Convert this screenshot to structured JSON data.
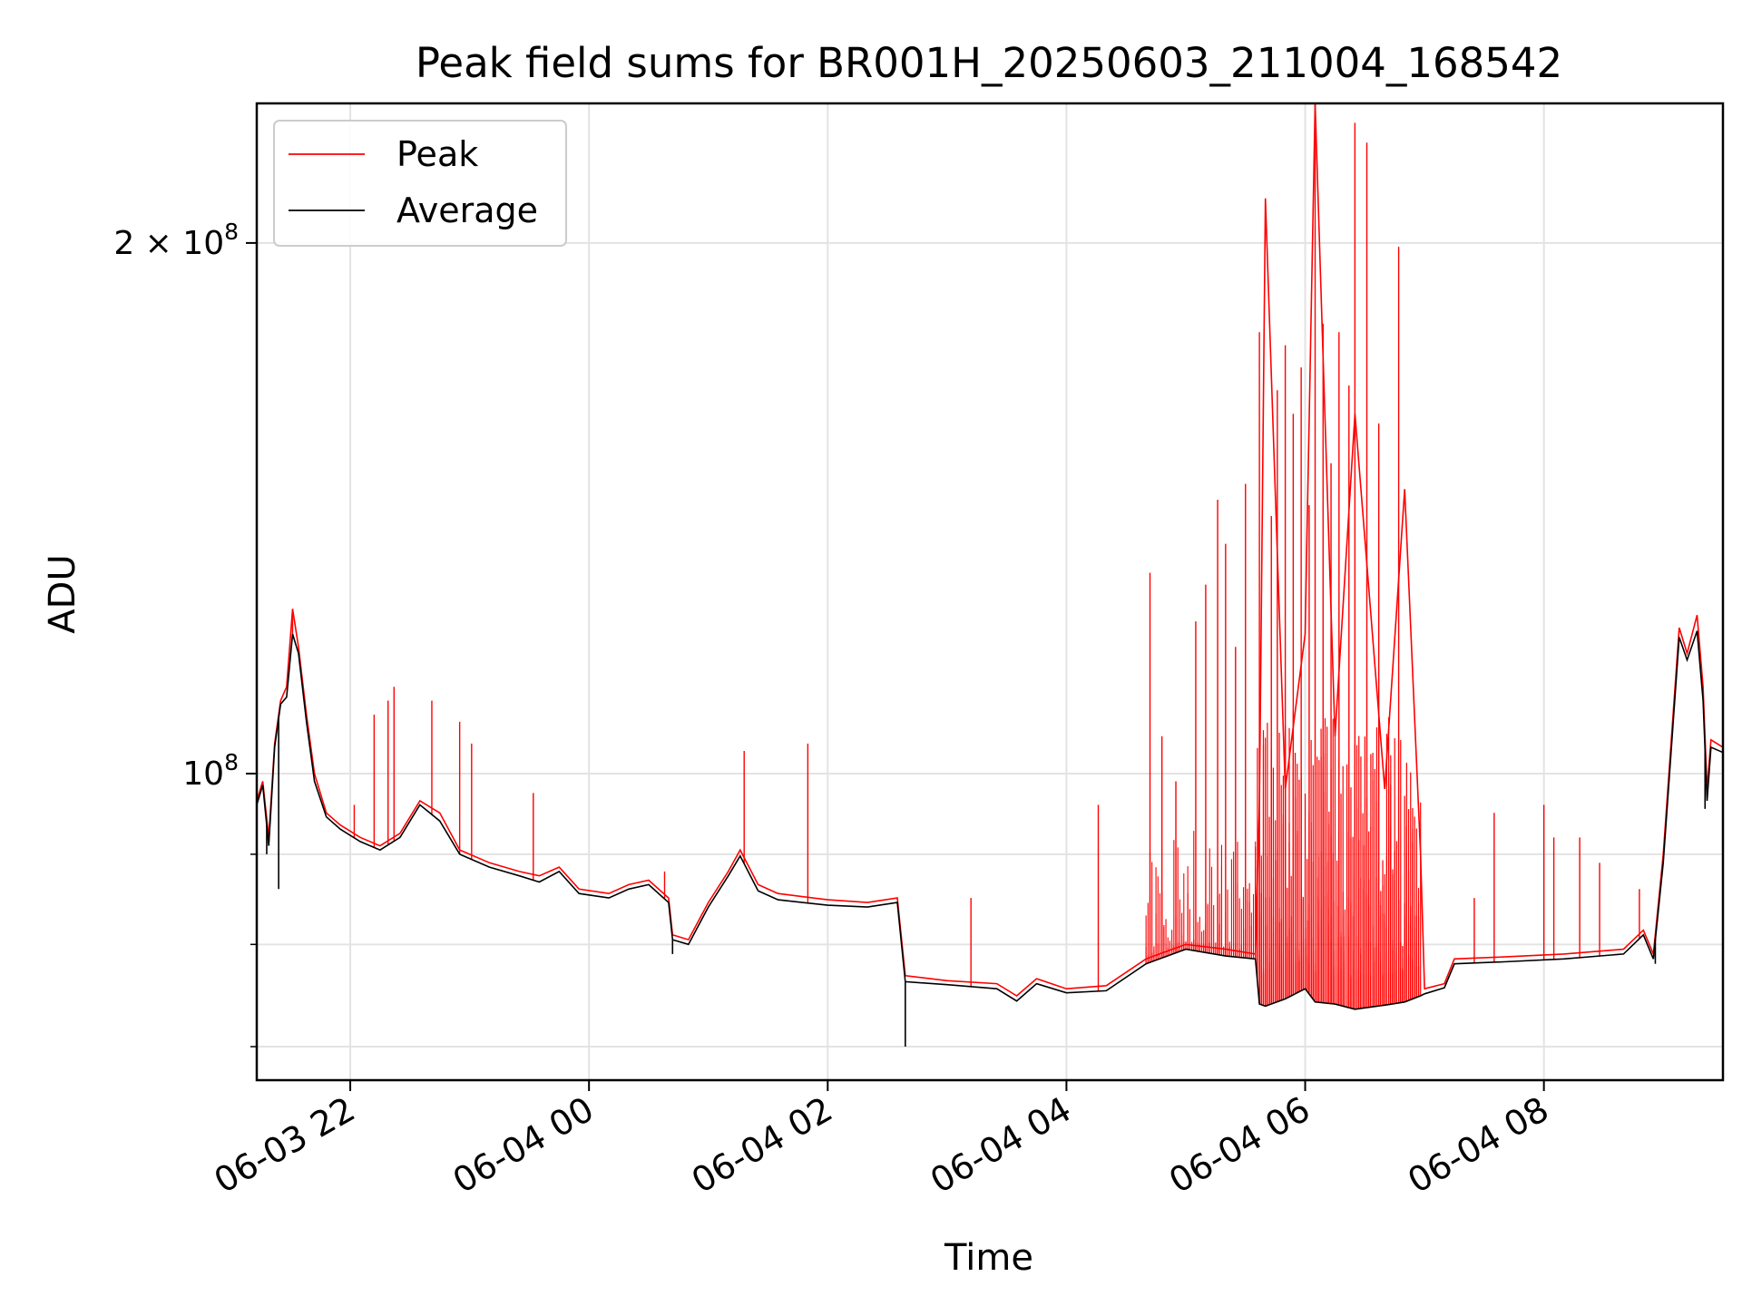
{
  "chart_data": {
    "type": "line",
    "title": "Peak field sums for BR001H_20250603_211004_168542",
    "xlabel": "Time",
    "ylabel": "ADU",
    "y_scale": "log",
    "ylim": [
      67000000,
      240000000
    ],
    "xlim": [
      "2025-06-03 21:13",
      "2025-06-04 09:30"
    ],
    "x_ticks": [
      {
        "label": "06-03 22",
        "value": "2025-06-03 22:00"
      },
      {
        "label": "06-04 00",
        "value": "2025-06-04 00:00"
      },
      {
        "label": "06-04 02",
        "value": "2025-06-04 02:00"
      },
      {
        "label": "06-04 04",
        "value": "2025-06-04 04:00"
      },
      {
        "label": "06-04 06",
        "value": "2025-06-04 06:00"
      },
      {
        "label": "06-04 08",
        "value": "2025-06-04 08:00"
      }
    ],
    "y_ticks": [
      {
        "label": "10",
        "sup": "8",
        "value": 100000000
      },
      {
        "label": "2 × 10",
        "sup": "8",
        "value": 200000000
      }
    ],
    "y_minor_ticks": [
      70000000,
      80000000,
      90000000
    ],
    "grid": true,
    "legend_position": "top-left",
    "series": [
      {
        "name": "Peak",
        "color": "#ff0000",
        "points": [
          [
            "2025-06-03 21:13",
            96500000
          ],
          [
            "2025-06-03 21:16",
            99000000
          ],
          [
            "2025-06-03 21:19",
            92000000
          ],
          [
            "2025-06-03 21:22",
            104000000
          ],
          [
            "2025-06-03 21:25",
            110000000
          ],
          [
            "2025-06-03 21:28",
            112000000
          ],
          [
            "2025-06-03 21:31",
            124000000
          ],
          [
            "2025-06-03 21:34",
            118000000
          ],
          [
            "2025-06-03 21:38",
            108000000
          ],
          [
            "2025-06-03 21:42",
            100000000
          ],
          [
            "2025-06-03 21:48",
            95000000
          ],
          [
            "2025-06-03 21:55",
            93500000
          ],
          [
            "2025-06-03 22:05",
            92000000
          ],
          [
            "2025-06-03 22:15",
            91000000
          ],
          [
            "2025-06-03 22:25",
            92500000
          ],
          [
            "2025-06-03 22:35",
            96500000
          ],
          [
            "2025-06-03 22:45",
            95000000
          ],
          [
            "2025-06-03 22:55",
            90500000
          ],
          [
            "2025-06-03 23:10",
            89000000
          ],
          [
            "2025-06-03 23:25",
            88000000
          ],
          [
            "2025-06-03 23:35",
            87500000
          ],
          [
            "2025-06-03 23:45",
            88500000
          ],
          [
            "2025-06-03 23:55",
            86000000
          ],
          [
            "2025-06-04 00:10",
            85500000
          ],
          [
            "2025-06-04 00:20",
            86500000
          ],
          [
            "2025-06-04 00:30",
            87000000
          ],
          [
            "2025-06-04 00:40",
            85000000
          ],
          [
            "2025-06-04 00:42",
            81000000
          ],
          [
            "2025-06-04 00:50",
            80500000
          ],
          [
            "2025-06-04 01:00",
            84500000
          ],
          [
            "2025-06-04 01:10",
            88000000
          ],
          [
            "2025-06-04 01:16",
            90500000
          ],
          [
            "2025-06-04 01:25",
            86500000
          ],
          [
            "2025-06-04 01:35",
            85500000
          ],
          [
            "2025-06-04 02:00",
            84800000
          ],
          [
            "2025-06-04 02:20",
            84500000
          ],
          [
            "2025-06-04 02:35",
            85000000
          ],
          [
            "2025-06-04 02:39",
            76800000
          ],
          [
            "2025-06-04 03:00",
            76300000
          ],
          [
            "2025-06-04 03:25",
            76000000
          ],
          [
            "2025-06-04 03:35",
            74800000
          ],
          [
            "2025-06-04 03:45",
            76500000
          ],
          [
            "2025-06-04 04:00",
            75500000
          ],
          [
            "2025-06-04 04:20",
            75800000
          ],
          [
            "2025-06-04 04:40",
            78500000
          ],
          [
            "2025-06-04 05:00",
            80000000
          ],
          [
            "2025-06-04 05:20",
            79500000
          ],
          [
            "2025-06-04 05:35",
            79000000
          ],
          [
            "2025-06-04 05:37",
            96000000
          ],
          [
            "2025-06-04 05:40",
            212000000
          ],
          [
            "2025-06-04 05:50",
            98000000
          ],
          [
            "2025-06-04 06:00",
            120000000
          ],
          [
            "2025-06-04 06:05",
            240000000
          ],
          [
            "2025-06-04 06:15",
            105000000
          ],
          [
            "2025-06-04 06:25",
            160000000
          ],
          [
            "2025-06-04 06:40",
            98000000
          ],
          [
            "2025-06-04 06:50",
            145000000
          ],
          [
            "2025-06-04 06:58",
            90000000
          ],
          [
            "2025-06-04 07:00",
            75500000
          ],
          [
            "2025-06-04 07:10",
            76000000
          ],
          [
            "2025-06-04 07:15",
            78500000
          ],
          [
            "2025-06-04 07:40",
            78700000
          ],
          [
            "2025-06-04 08:10",
            79000000
          ],
          [
            "2025-06-04 08:40",
            79500000
          ],
          [
            "2025-06-04 08:50",
            81500000
          ],
          [
            "2025-06-04 08:55",
            79000000
          ],
          [
            "2025-06-04 09:00",
            90000000
          ],
          [
            "2025-06-04 09:08",
            121000000
          ],
          [
            "2025-06-04 09:12",
            117000000
          ],
          [
            "2025-06-04 09:17",
            123000000
          ],
          [
            "2025-06-04 09:20",
            112000000
          ],
          [
            "2025-06-04 09:22",
            98000000
          ],
          [
            "2025-06-04 09:24",
            104500000
          ],
          [
            "2025-06-04 09:30",
            103500000
          ]
        ]
      },
      {
        "name": "Average",
        "color": "#000000",
        "points": [
          [
            "2025-06-03 21:13",
            96000000
          ],
          [
            "2025-06-03 21:16",
            98500000
          ],
          [
            "2025-06-03 21:19",
            91000000
          ],
          [
            "2025-06-03 21:22",
            103500000
          ],
          [
            "2025-06-03 21:25",
            109500000
          ],
          [
            "2025-06-03 21:28",
            110500000
          ],
          [
            "2025-06-03 21:31",
            120000000
          ],
          [
            "2025-06-03 21:34",
            117000000
          ],
          [
            "2025-06-03 21:38",
            107000000
          ],
          [
            "2025-06-03 21:42",
            99000000
          ],
          [
            "2025-06-03 21:48",
            94500000
          ],
          [
            "2025-06-03 21:55",
            93000000
          ],
          [
            "2025-06-03 22:05",
            91500000
          ],
          [
            "2025-06-03 22:15",
            90500000
          ],
          [
            "2025-06-03 22:25",
            92000000
          ],
          [
            "2025-06-03 22:35",
            96000000
          ],
          [
            "2025-06-03 22:45",
            94000000
          ],
          [
            "2025-06-03 22:55",
            90000000
          ],
          [
            "2025-06-03 23:10",
            88500000
          ],
          [
            "2025-06-03 23:25",
            87500000
          ],
          [
            "2025-06-03 23:35",
            86800000
          ],
          [
            "2025-06-03 23:45",
            88000000
          ],
          [
            "2025-06-03 23:55",
            85500000
          ],
          [
            "2025-06-04 00:10",
            85000000
          ],
          [
            "2025-06-04 00:20",
            86000000
          ],
          [
            "2025-06-04 00:30",
            86500000
          ],
          [
            "2025-06-04 00:40",
            84500000
          ],
          [
            "2025-06-04 00:42",
            80500000
          ],
          [
            "2025-06-04 00:50",
            80000000
          ],
          [
            "2025-06-04 01:00",
            84000000
          ],
          [
            "2025-06-04 01:10",
            87500000
          ],
          [
            "2025-06-04 01:16",
            89800000
          ],
          [
            "2025-06-04 01:25",
            85800000
          ],
          [
            "2025-06-04 01:35",
            84800000
          ],
          [
            "2025-06-04 02:00",
            84200000
          ],
          [
            "2025-06-04 02:20",
            84000000
          ],
          [
            "2025-06-04 02:35",
            84500000
          ],
          [
            "2025-06-04 02:39",
            76200000
          ],
          [
            "2025-06-04 03:00",
            75900000
          ],
          [
            "2025-06-04 03:25",
            75500000
          ],
          [
            "2025-06-04 03:35",
            74300000
          ],
          [
            "2025-06-04 03:45",
            76000000
          ],
          [
            "2025-06-04 04:00",
            75100000
          ],
          [
            "2025-06-04 04:20",
            75300000
          ],
          [
            "2025-06-04 04:40",
            78000000
          ],
          [
            "2025-06-04 05:00",
            79500000
          ],
          [
            "2025-06-04 05:20",
            78800000
          ],
          [
            "2025-06-04 05:35",
            78500000
          ],
          [
            "2025-06-04 05:37",
            74000000
          ],
          [
            "2025-06-04 05:40",
            73800000
          ],
          [
            "2025-06-04 05:50",
            74500000
          ],
          [
            "2025-06-04 06:00",
            75500000
          ],
          [
            "2025-06-04 06:05",
            74200000
          ],
          [
            "2025-06-04 06:15",
            74000000
          ],
          [
            "2025-06-04 06:25",
            73500000
          ],
          [
            "2025-06-04 06:40",
            73900000
          ],
          [
            "2025-06-04 06:50",
            74200000
          ],
          [
            "2025-06-04 06:58",
            74800000
          ],
          [
            "2025-06-04 07:00",
            75000000
          ],
          [
            "2025-06-04 07:10",
            75600000
          ],
          [
            "2025-06-04 07:15",
            78000000
          ],
          [
            "2025-06-04 07:40",
            78200000
          ],
          [
            "2025-06-04 08:10",
            78500000
          ],
          [
            "2025-06-04 08:40",
            79000000
          ],
          [
            "2025-06-04 08:50",
            81000000
          ],
          [
            "2025-06-04 08:55",
            78500000
          ],
          [
            "2025-06-04 09:00",
            89000000
          ],
          [
            "2025-06-04 09:08",
            119500000
          ],
          [
            "2025-06-04 09:12",
            116000000
          ],
          [
            "2025-06-04 09:17",
            120500000
          ],
          [
            "2025-06-04 09:20",
            110000000
          ],
          [
            "2025-06-04 09:22",
            96500000
          ],
          [
            "2025-06-04 09:24",
            103500000
          ],
          [
            "2025-06-04 09:30",
            102800000
          ]
        ]
      }
    ],
    "spikes_peak": [
      [
        "2025-06-03 21:31",
        124000000
      ],
      [
        "2025-06-03 22:02",
        96000000
      ],
      [
        "2025-06-03 22:12",
        108000000
      ],
      [
        "2025-06-03 22:19",
        110000000
      ],
      [
        "2025-06-03 22:22",
        112000000
      ],
      [
        "2025-06-03 22:41",
        110000000
      ],
      [
        "2025-06-03 22:55",
        107000000
      ],
      [
        "2025-06-03 23:01",
        104000000
      ],
      [
        "2025-06-03 23:32",
        97500000
      ],
      [
        "2025-06-04 00:38",
        88000000
      ],
      [
        "2025-06-04 01:18",
        103000000
      ],
      [
        "2025-06-04 01:50",
        104000000
      ],
      [
        "2025-06-04 03:12",
        85000000
      ],
      [
        "2025-06-04 04:16",
        96000000
      ],
      [
        "2025-06-04 04:42",
        130000000
      ],
      [
        "2025-06-04 04:48",
        105000000
      ],
      [
        "2025-06-04 04:55",
        99000000
      ],
      [
        "2025-06-04 05:05",
        122000000
      ],
      [
        "2025-06-04 05:10",
        128000000
      ],
      [
        "2025-06-04 05:16",
        143000000
      ],
      [
        "2025-06-04 05:20",
        135000000
      ],
      [
        "2025-06-04 05:25",
        118000000
      ],
      [
        "2025-06-04 05:30",
        146000000
      ],
      [
        "2025-06-04 05:37",
        178000000
      ],
      [
        "2025-06-04 05:43",
        140000000
      ],
      [
        "2025-06-04 05:46",
        165000000
      ],
      [
        "2025-06-04 05:50",
        175000000
      ],
      [
        "2025-06-04 05:54",
        160000000
      ],
      [
        "2025-06-04 05:58",
        170000000
      ],
      [
        "2025-06-04 06:02",
        142000000
      ],
      [
        "2025-06-04 06:05",
        240000000
      ],
      [
        "2025-06-04 06:09",
        180000000
      ],
      [
        "2025-06-04 06:13",
        150000000
      ],
      [
        "2025-06-04 06:17",
        178000000
      ],
      [
        "2025-06-04 06:22",
        166000000
      ],
      [
        "2025-06-04 06:25",
        234000000
      ],
      [
        "2025-06-04 06:31",
        228000000
      ],
      [
        "2025-06-04 06:37",
        158000000
      ],
      [
        "2025-06-04 06:47",
        199000000
      ],
      [
        "2025-06-04 07:25",
        85000000
      ],
      [
        "2025-06-04 07:35",
        95000000
      ],
      [
        "2025-06-04 08:00",
        96000000
      ],
      [
        "2025-06-04 08:05",
        92000000
      ],
      [
        "2025-06-04 08:18",
        92000000
      ],
      [
        "2025-06-04 08:28",
        89000000
      ],
      [
        "2025-06-04 08:48",
        86000000
      ]
    ],
    "average_dips": [
      [
        "2025-06-03 21:18",
        90000000
      ],
      [
        "2025-06-03 21:24",
        86000000
      ],
      [
        "2025-06-04 00:42",
        79000000
      ],
      [
        "2025-06-04 02:39",
        70000000
      ],
      [
        "2025-06-04 08:56",
        78000000
      ],
      [
        "2025-06-04 09:21",
        95500000
      ]
    ]
  }
}
